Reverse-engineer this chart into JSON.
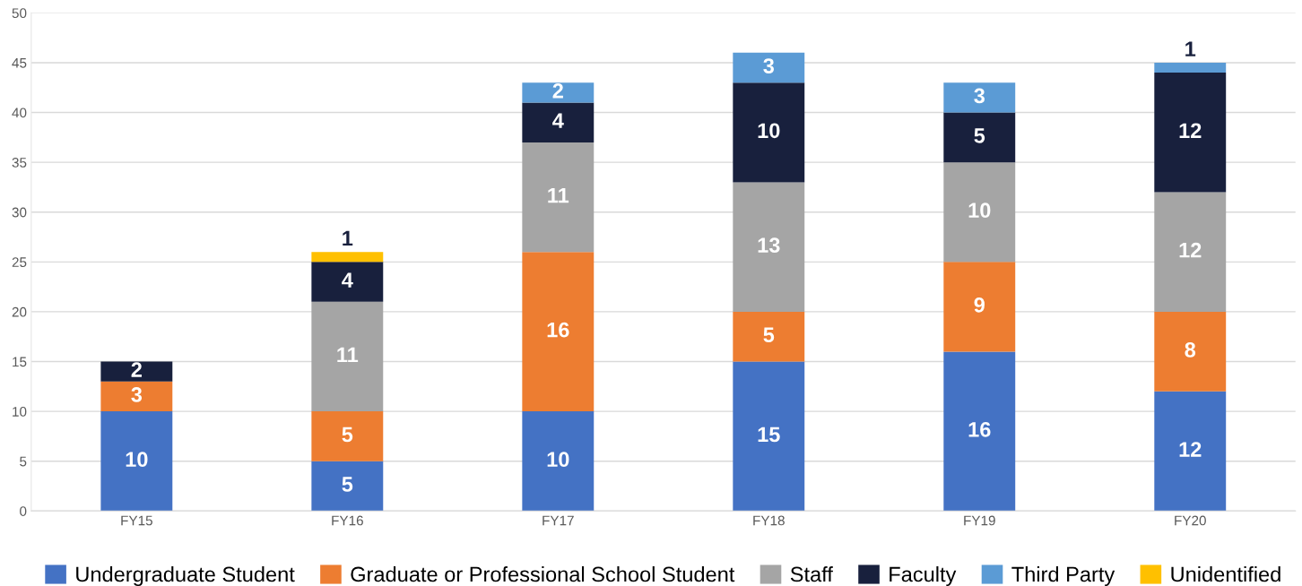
{
  "chart_data": {
    "type": "bar",
    "stacked": true,
    "categories": [
      "FY15",
      "FY16",
      "FY17",
      "FY18",
      "FY19",
      "FY20"
    ],
    "series": [
      {
        "name": "Undergraduate Student",
        "color": "#4472c4",
        "values": [
          10,
          5,
          10,
          15,
          16,
          12
        ]
      },
      {
        "name": "Graduate or Professional School Student",
        "color": "#ed7d31",
        "values": [
          3,
          5,
          16,
          5,
          9,
          8
        ]
      },
      {
        "name": "Staff",
        "color": "#a5a5a5",
        "values": [
          null,
          11,
          11,
          13,
          10,
          12
        ]
      },
      {
        "name": "Faculty",
        "color": "#18203d",
        "values": [
          2,
          4,
          4,
          10,
          5,
          12
        ]
      },
      {
        "name": "Third Party",
        "color": "#5b9bd5",
        "values": [
          null,
          null,
          2,
          3,
          3,
          1
        ]
      },
      {
        "name": "Unidentified",
        "color": "#ffc000",
        "values": [
          null,
          1,
          null,
          null,
          null,
          null
        ]
      }
    ],
    "ylim": [
      0,
      50
    ],
    "yticks": [
      0,
      5,
      10,
      15,
      20,
      25,
      30,
      35,
      40,
      45,
      50
    ],
    "grid": "y",
    "legend": "bottom",
    "data_labels": true
  }
}
